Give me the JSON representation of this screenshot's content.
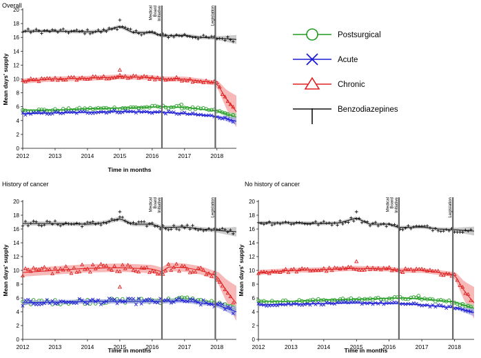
{
  "chart_data": [
    {
      "type": "line",
      "title": "Overall",
      "xlabel": "Time in months",
      "ylabel": "Mean days' supply",
      "xlim": [
        2012,
        2018.6
      ],
      "ylim": [
        0,
        20
      ],
      "x_ticks": [
        "2012",
        "2013",
        "2014",
        "2015",
        "2016",
        "2017",
        "2018"
      ],
      "y_ticks": [
        "0",
        "2",
        "4",
        "6",
        "8",
        "10",
        "12",
        "14",
        "16",
        "18",
        "20"
      ],
      "events": [
        {
          "label": "Medical Board Initiative",
          "lines": [
            "Medical",
            "Board",
            "Initiative"
          ],
          "x": 2016.3
        },
        {
          "label": "Legislation",
          "lines": [
            "Legislation"
          ],
          "x": 2017.95
        }
      ],
      "series": [
        {
          "name": "Benzodiazepines",
          "key": "benzo",
          "trend": [
            [
              2012,
              16.9
            ],
            [
              2013,
              16.9
            ],
            [
              2014,
              16.8
            ],
            [
              2014.5,
              16.9
            ],
            [
              2015,
              17.6
            ],
            [
              2015.4,
              16.7
            ],
            [
              2016,
              16.7
            ],
            [
              2016.3,
              16.2
            ],
            [
              2017,
              16.3
            ],
            [
              2017.5,
              16.0
            ],
            [
              2018,
              15.9
            ],
            [
              2018.6,
              15.7
            ]
          ],
          "band": 0.25,
          "noise": 0.35,
          "outliers": [
            [
              2015,
              18.5
            ]
          ]
        },
        {
          "name": "Chronic",
          "key": "chronic",
          "trend": [
            [
              2012,
              9.7
            ],
            [
              2013,
              10.0
            ],
            [
              2014,
              10.1
            ],
            [
              2015,
              10.3
            ],
            [
              2016,
              10.2
            ],
            [
              2016.3,
              10.0
            ],
            [
              2017,
              10.0
            ],
            [
              2017.5,
              9.7
            ],
            [
              2018,
              9.4
            ],
            [
              2018.3,
              7.0
            ],
            [
              2018.6,
              5.3
            ]
          ],
          "band": 0.35,
          "noise": 0.3,
          "outliers": [
            [
              2015,
              11.3
            ]
          ]
        },
        {
          "name": "Postsurgical",
          "key": "post",
          "trend": [
            [
              2012,
              5.5
            ],
            [
              2013,
              5.5
            ],
            [
              2014,
              5.7
            ],
            [
              2015,
              5.8
            ],
            [
              2016.3,
              6.0
            ],
            [
              2017,
              5.9
            ],
            [
              2018,
              5.4
            ],
            [
              2018.6,
              4.5
            ]
          ],
          "band": 0.15,
          "noise": 0.2,
          "outliers": [
            [
              2016.9,
              6.3
            ]
          ]
        },
        {
          "name": "Acute",
          "key": "acute",
          "trend": [
            [
              2012,
              5.0
            ],
            [
              2013,
              5.1
            ],
            [
              2014,
              5.2
            ],
            [
              2015,
              5.3
            ],
            [
              2016.3,
              5.2
            ],
            [
              2017,
              5.0
            ],
            [
              2018,
              4.6
            ],
            [
              2018.6,
              3.9
            ]
          ],
          "band": 0.15,
          "noise": 0.2,
          "outliers": []
        }
      ]
    },
    {
      "type": "line",
      "title": "History of cancer",
      "xlabel": "Time in months",
      "ylabel": "Mean days' supply",
      "xlim": [
        2012,
        2018.6
      ],
      "ylim": [
        0,
        20
      ],
      "x_ticks": [
        "2012",
        "2013",
        "2014",
        "2015",
        "2016",
        "2017",
        "2018"
      ],
      "y_ticks": [
        "0",
        "2",
        "4",
        "6",
        "8",
        "10",
        "12",
        "14",
        "16",
        "18",
        "20"
      ],
      "events": [
        {
          "label": "Medical Board Initiative",
          "lines": [
            "Medical",
            "Board",
            "Initiative"
          ],
          "x": 2016.3
        },
        {
          "label": "Legislation",
          "lines": [
            "Legislation"
          ],
          "x": 2017.95
        }
      ],
      "series": [
        {
          "name": "Benzodiazepines",
          "key": "benzo",
          "trend": [
            [
              2012,
              16.8
            ],
            [
              2013,
              16.8
            ],
            [
              2014,
              16.7
            ],
            [
              2014.5,
              16.9
            ],
            [
              2015,
              17.5
            ],
            [
              2015.4,
              16.7
            ],
            [
              2016,
              16.7
            ],
            [
              2016.3,
              16.2
            ],
            [
              2017,
              16.3
            ],
            [
              2017.5,
              16.0
            ],
            [
              2018,
              15.8
            ],
            [
              2018.6,
              15.6
            ]
          ],
          "band": 0.3,
          "noise": 0.4,
          "outliers": [
            [
              2015,
              18.5
            ]
          ]
        },
        {
          "name": "Chronic",
          "key": "chronic",
          "trend": [
            [
              2012,
              9.7
            ],
            [
              2013,
              10.0
            ],
            [
              2014,
              10.3
            ],
            [
              2015,
              10.4
            ],
            [
              2016,
              10.2
            ],
            [
              2016.3,
              9.8
            ],
            [
              2016.5,
              10.5
            ],
            [
              2017,
              10.4
            ],
            [
              2017.5,
              10.0
            ],
            [
              2018,
              9.2
            ],
            [
              2018.3,
              7.0
            ],
            [
              2018.6,
              5.2
            ]
          ],
          "band": 0.6,
          "noise": 0.6,
          "outliers": [
            [
              2015,
              7.6
            ]
          ]
        },
        {
          "name": "Postsurgical",
          "key": "post",
          "trend": [
            [
              2012,
              5.4
            ],
            [
              2013,
              5.4
            ],
            [
              2014,
              5.5
            ],
            [
              2015,
              5.6
            ],
            [
              2016.3,
              5.6
            ],
            [
              2017,
              5.9
            ],
            [
              2018,
              5.2
            ],
            [
              2018.6,
              4.3
            ]
          ],
          "band": 0.25,
          "noise": 0.35,
          "outliers": []
        },
        {
          "name": "Acute",
          "key": "acute",
          "trend": [
            [
              2012,
              5.3
            ],
            [
              2013,
              5.4
            ],
            [
              2014,
              5.5
            ],
            [
              2015,
              5.5
            ],
            [
              2016.3,
              5.5
            ],
            [
              2017,
              5.6
            ],
            [
              2018,
              5.0
            ],
            [
              2018.6,
              4.0
            ]
          ],
          "band": 0.3,
          "noise": 0.45,
          "outliers": []
        }
      ]
    },
    {
      "type": "line",
      "title": "No history of cancer",
      "xlabel": "Time in months",
      "ylabel": "Mean days' supply",
      "xlim": [
        2012,
        2018.6
      ],
      "ylim": [
        0,
        20
      ],
      "x_ticks": [
        "2012",
        "2013",
        "2014",
        "2015",
        "2016",
        "2017",
        "2018"
      ],
      "y_ticks": [
        "0",
        "2",
        "4",
        "6",
        "8",
        "10",
        "12",
        "14",
        "16",
        "18",
        "20"
      ],
      "events": [
        {
          "label": "Medical Board Initiative",
          "lines": [
            "Medical",
            "Board",
            "Initiative"
          ],
          "x": 2016.3
        },
        {
          "label": "Legislation",
          "lines": [
            "Legislation"
          ],
          "x": 2017.95
        }
      ],
      "series": [
        {
          "name": "Benzodiazepines",
          "key": "benzo",
          "trend": [
            [
              2012,
              16.9
            ],
            [
              2013,
              16.9
            ],
            [
              2014,
              16.8
            ],
            [
              2014.5,
              16.9
            ],
            [
              2015,
              17.6
            ],
            [
              2015.4,
              16.7
            ],
            [
              2016,
              16.7
            ],
            [
              2016.3,
              16.2
            ],
            [
              2017,
              16.3
            ],
            [
              2017.5,
              16.0
            ],
            [
              2018,
              15.9
            ],
            [
              2018.6,
              15.7
            ]
          ],
          "band": 0.25,
          "noise": 0.35,
          "outliers": [
            [
              2015,
              18.5
            ]
          ]
        },
        {
          "name": "Chronic",
          "key": "chronic",
          "trend": [
            [
              2012,
              9.7
            ],
            [
              2013,
              10.0
            ],
            [
              2014,
              10.1
            ],
            [
              2015,
              10.3
            ],
            [
              2016,
              10.2
            ],
            [
              2016.3,
              10.0
            ],
            [
              2017,
              10.0
            ],
            [
              2017.5,
              9.7
            ],
            [
              2018,
              9.4
            ],
            [
              2018.3,
              7.0
            ],
            [
              2018.6,
              5.3
            ]
          ],
          "band": 0.35,
          "noise": 0.3,
          "outliers": [
            [
              2015,
              11.3
            ]
          ]
        },
        {
          "name": "Postsurgical",
          "key": "post",
          "trend": [
            [
              2012,
              5.5
            ],
            [
              2013,
              5.5
            ],
            [
              2014,
              5.7
            ],
            [
              2015,
              5.8
            ],
            [
              2016.3,
              6.0
            ],
            [
              2017,
              5.9
            ],
            [
              2018,
              5.4
            ],
            [
              2018.6,
              4.5
            ]
          ],
          "band": 0.15,
          "noise": 0.2,
          "outliers": [
            [
              2016.9,
              6.3
            ]
          ]
        },
        {
          "name": "Acute",
          "key": "acute",
          "trend": [
            [
              2012,
              5.0
            ],
            [
              2013,
              5.1
            ],
            [
              2014,
              5.2
            ],
            [
              2015,
              5.3
            ],
            [
              2016.3,
              5.2
            ],
            [
              2017,
              5.0
            ],
            [
              2018,
              4.6
            ],
            [
              2018.6,
              3.9
            ]
          ],
          "band": 0.15,
          "noise": 0.2,
          "outliers": []
        }
      ]
    }
  ],
  "legend": {
    "items": [
      {
        "key": "post",
        "label": "Postsurgical",
        "marker": "circle"
      },
      {
        "key": "acute",
        "label": "Acute",
        "marker": "x"
      },
      {
        "key": "chronic",
        "label": "Chronic",
        "marker": "triangle"
      },
      {
        "key": "benzo",
        "label": "Benzodiazepines",
        "marker": "plus"
      }
    ]
  },
  "colors": {
    "post": "#1f9a1f",
    "acute": "#1a1ad6",
    "chronic": "#e02020",
    "benzo": "#111111",
    "chronic_band": "#f4a0a0",
    "benzo_band": "#b9b9b9",
    "post_band": "#a8d8a8",
    "acute_band": "#a8a8e8",
    "event_line": "#666666"
  }
}
